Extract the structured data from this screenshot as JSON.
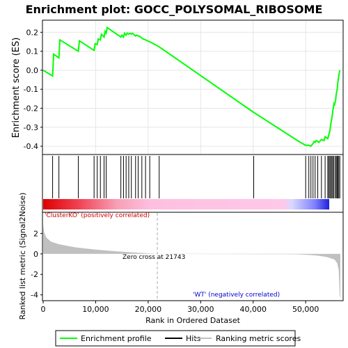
{
  "chart_data": [
    {
      "type": "line",
      "title": "Enrichment plot: GOCC_POLYSOMAL_RIBOSOME",
      "ylabel": "Enrichment score (ES)",
      "xlim": [
        0,
        57000
      ],
      "ylim": [
        -0.44,
        0.26
      ],
      "yticks": [
        0.2,
        0.1,
        0.0,
        -0.1,
        -0.2,
        -0.3,
        -0.4
      ],
      "ytick_labels": [
        "0.2",
        "0.1",
        "0.0",
        "-0.1",
        "-0.2",
        "-0.3",
        "-0.4"
      ],
      "grid": true,
      "series": [
        {
          "name": "Enrichment profile",
          "color": "#00ff00",
          "x": [
            0,
            1800,
            2000,
            3000,
            3200,
            6700,
            6900,
            9700,
            9900,
            10300,
            10500,
            10900,
            11100,
            11600,
            11800,
            12000,
            12200,
            14800,
            15000,
            15300,
            15500,
            15800,
            16000,
            16300,
            16500,
            16800,
            17000,
            17600,
            17800,
            18100,
            18300,
            18800,
            19000,
            19500,
            20300,
            21000,
            22000,
            40000,
            49000,
            50000,
            50600,
            51000,
            51400,
            51600,
            51800,
            52000,
            52300,
            52500,
            53000,
            53500,
            53700,
            54200,
            54400,
            54600,
            54800,
            55000,
            55200,
            55400,
            55500,
            55700,
            55800,
            56000,
            56100,
            56300,
            56500
          ],
          "y": [
            0.0,
            -0.03,
            0.085,
            0.065,
            0.16,
            0.1,
            0.155,
            0.105,
            0.14,
            0.135,
            0.165,
            0.16,
            0.19,
            0.175,
            0.205,
            0.195,
            0.225,
            0.175,
            0.185,
            0.175,
            0.195,
            0.185,
            0.195,
            0.19,
            0.195,
            0.19,
            0.195,
            0.18,
            0.185,
            0.18,
            0.18,
            0.17,
            0.165,
            0.16,
            0.15,
            0.14,
            0.125,
            -0.22,
            -0.38,
            -0.395,
            -0.395,
            -0.4,
            -0.385,
            -0.375,
            -0.38,
            -0.37,
            -0.375,
            -0.38,
            -0.365,
            -0.37,
            -0.35,
            -0.36,
            -0.34,
            -0.32,
            -0.28,
            -0.25,
            -0.21,
            -0.175,
            -0.18,
            -0.16,
            -0.13,
            -0.1,
            -0.07,
            -0.03,
            0.0
          ]
        }
      ],
      "legend": [
        {
          "label": "Enrichment profile",
          "color": "#00ff00"
        },
        {
          "label": "Hits",
          "color": "#000000"
        },
        {
          "label": "Ranking metric scores",
          "color": "#c0c0c0"
        }
      ],
      "legend_position": "bottom"
    },
    {
      "type": "rug",
      "name": "Hits",
      "hit_ranks": [
        1800,
        3000,
        6700,
        9700,
        10300,
        10900,
        11600,
        12000,
        14800,
        15300,
        15800,
        16300,
        16800,
        17600,
        18100,
        18800,
        19500,
        20300,
        22100,
        40100,
        50000,
        50600,
        51000,
        51400,
        51800,
        52300,
        53000,
        53700,
        54200,
        54400,
        54600,
        54800,
        55000,
        55200,
        55400,
        55700,
        55800,
        56000,
        56100,
        56300,
        56500
      ]
    },
    {
      "type": "area",
      "xlabel": "Rank in Ordered Dataset",
      "ylabel": "Ranked list metric (Signal2Noise)",
      "xlim": [
        0,
        57000
      ],
      "ylim": [
        -4.5,
        4.0
      ],
      "xticks": [
        0,
        10000,
        20000,
        30000,
        40000,
        50000
      ],
      "xtick_labels": [
        "0",
        "10,000",
        "20,000",
        "30,000",
        "40,000",
        "50,000"
      ],
      "yticks": [
        2,
        0,
        -2,
        -4
      ],
      "ytick_labels": [
        "2",
        "0",
        "-2",
        "-4"
      ],
      "color": "#c0c0c0",
      "x": [
        0,
        200,
        600,
        1500,
        3000,
        6000,
        10000,
        14000,
        18000,
        21743,
        25000,
        35000,
        45000,
        48000,
        50000,
        52000,
        54000,
        55500,
        56000,
        56300,
        56500,
        56600
      ],
      "values": [
        2.9,
        2.1,
        1.6,
        1.2,
        0.95,
        0.65,
        0.42,
        0.25,
        0.12,
        0.0,
        -0.01,
        -0.02,
        -0.03,
        -0.04,
        -0.08,
        -0.15,
        -0.3,
        -0.55,
        -0.9,
        -1.6,
        -4.2,
        -4.2
      ],
      "zero_cross": 21743,
      "annotations": {
        "zero_cross": "Zero cross at 21743",
        "positive": "'ClusterKO' (positively correlated)",
        "negative": "'WT' (negatively correlated)"
      }
    }
  ]
}
